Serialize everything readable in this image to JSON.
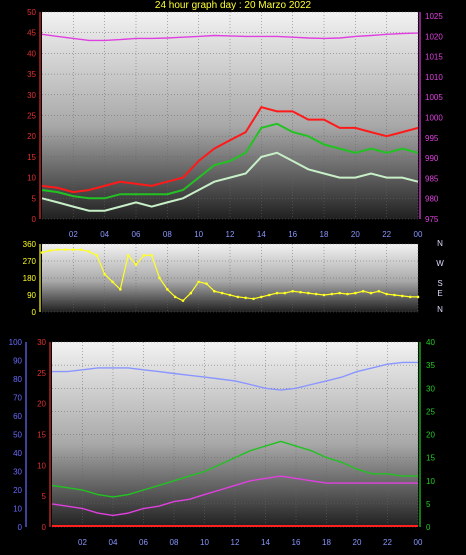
{
  "title": "24 hour graph day : 20 Marzo 2022",
  "colors": {
    "wind_gust": "#ff1a1a",
    "wind_avg": "#22c222",
    "wind_speed": "#c8f0c8",
    "pressure": "#e040e0",
    "direction": "#ffff22",
    "humidity": "#8a96ff",
    "temp_outdoor": "#22c222",
    "dewpoint": "#e040e0",
    "rain": "#ff2020",
    "axis_left": "#e03030",
    "axis_right_pressure": "#e040e0",
    "axis_humidity": "#6a6aff",
    "axis_right_temp": "#22cc22"
  },
  "x_tick_labels": [
    "02",
    "04",
    "06",
    "08",
    "10",
    "12",
    "14",
    "16",
    "18",
    "20",
    "22",
    "00"
  ],
  "compass_labels": [
    "N",
    "W",
    "S",
    "E",
    "N"
  ],
  "chart_data": [
    {
      "type": "line",
      "name_ref": "wind_pressure",
      "x_hours": [
        0,
        1,
        2,
        3,
        4,
        5,
        6,
        7,
        8,
        9,
        10,
        11,
        12,
        13,
        14,
        15,
        16,
        17,
        18,
        19,
        20,
        21,
        22,
        23,
        24
      ],
      "y_left_ticks": [
        0,
        5,
        10,
        15,
        20,
        25,
        30,
        35,
        40,
        45,
        50
      ],
      "y_right_ticks": [
        975,
        980,
        985,
        990,
        995,
        1000,
        1005,
        1010,
        1015,
        1020,
        1025
      ],
      "ylim_left": [
        0,
        50
      ],
      "ylim_right": [
        975,
        1026
      ],
      "series": [
        {
          "key": "wind_gust",
          "axis": "left",
          "values": [
            8,
            7.5,
            6.5,
            7,
            8,
            9,
            8.5,
            8,
            9,
            10,
            14,
            17,
            19,
            21,
            27,
            26,
            26,
            24,
            24,
            22,
            22,
            21,
            20,
            21,
            22
          ]
        },
        {
          "key": "wind_avg",
          "axis": "left",
          "values": [
            7,
            6.5,
            5.5,
            5,
            5,
            6,
            6,
            6,
            6,
            7,
            10,
            13,
            14,
            16,
            22,
            23,
            21,
            20,
            18,
            17,
            16,
            17,
            16,
            17,
            16
          ]
        },
        {
          "key": "wind_speed",
          "axis": "left",
          "values": [
            5,
            4,
            3,
            2,
            2,
            3,
            4,
            3,
            4,
            5,
            7,
            9,
            10,
            11,
            15,
            16,
            14,
            12,
            11,
            10,
            10,
            11,
            10,
            10,
            9
          ]
        },
        {
          "key": "pressure",
          "axis": "right",
          "values": [
            1020.5,
            1020.0,
            1019.5,
            1019.0,
            1019.0,
            1019.2,
            1019.5,
            1019.5,
            1019.6,
            1019.8,
            1020.0,
            1020.2,
            1020.1,
            1020.0,
            1020.0,
            1020.0,
            1019.8,
            1019.6,
            1019.5,
            1019.6,
            1020.0,
            1020.2,
            1020.5,
            1020.7,
            1020.8
          ]
        }
      ]
    },
    {
      "type": "scatter",
      "name_ref": "wind_direction",
      "x_hours": [
        0,
        0.5,
        1,
        1.5,
        2,
        2.5,
        3,
        3.5,
        4,
        4.5,
        5,
        5.5,
        6,
        6.5,
        7,
        7.5,
        8,
        8.5,
        9,
        9.5,
        10,
        10.5,
        11,
        11.5,
        12,
        12.5,
        13,
        13.5,
        14,
        14.5,
        15,
        15.5,
        16,
        16.5,
        17,
        17.5,
        18,
        18.5,
        19,
        19.5,
        20,
        20.5,
        21,
        21.5,
        22,
        22.5,
        23,
        23.5,
        24
      ],
      "y_ticks": [
        0,
        90,
        180,
        270,
        360
      ],
      "ylim": [
        0,
        360
      ],
      "series": [
        {
          "key": "direction",
          "values": [
            315,
            325,
            330,
            330,
            330,
            330,
            320,
            300,
            200,
            160,
            120,
            300,
            250,
            300,
            300,
            180,
            120,
            80,
            60,
            100,
            160,
            150,
            110,
            100,
            90,
            80,
            75,
            70,
            80,
            90,
            100,
            100,
            110,
            105,
            100,
            95,
            90,
            95,
            100,
            95,
            100,
            110,
            100,
            110,
            95,
            90,
            85,
            80,
            80
          ]
        }
      ]
    },
    {
      "type": "line",
      "name_ref": "temp_humidity",
      "x_hours": [
        0,
        1,
        2,
        3,
        4,
        5,
        6,
        7,
        8,
        9,
        10,
        11,
        12,
        13,
        14,
        15,
        16,
        17,
        18,
        19,
        20,
        21,
        22,
        23,
        24
      ],
      "y_humidity_ticks": [
        0,
        10,
        20,
        30,
        40,
        50,
        60,
        70,
        80,
        90,
        100
      ],
      "y_left_ticks": [
        0,
        5,
        10,
        15,
        20,
        25,
        30
      ],
      "y_right_ticks": [
        0,
        5,
        10,
        15,
        20,
        25,
        30,
        35,
        40
      ],
      "ylim_humidity": [
        0,
        100
      ],
      "ylim_left": [
        0,
        30
      ],
      "ylim_right": [
        0,
        40
      ],
      "series": [
        {
          "key": "humidity",
          "axis": "humidity",
          "values": [
            84,
            84,
            85,
            86,
            86,
            86,
            85,
            84,
            83,
            82,
            81,
            80,
            79,
            77,
            75,
            74,
            75,
            77,
            79,
            81,
            84,
            86,
            88,
            89,
            89
          ]
        },
        {
          "key": "temp_outdoor",
          "axis": "right",
          "values": [
            9.0,
            8.5,
            8.0,
            7.0,
            6.5,
            7.0,
            8.0,
            9.0,
            10.0,
            11.0,
            12.0,
            13.5,
            15.0,
            16.5,
            17.5,
            18.5,
            17.5,
            16.5,
            15.0,
            14.0,
            12.5,
            11.5,
            11.5,
            11.0,
            11.0
          ]
        },
        {
          "key": "dewpoint",
          "axis": "right",
          "values": [
            5.0,
            4.5,
            4.0,
            3.0,
            2.5,
            3.0,
            4.0,
            4.5,
            5.5,
            6.0,
            7.0,
            8.0,
            9.0,
            10.0,
            10.5,
            11.0,
            10.5,
            10.0,
            9.5,
            9.5,
            9.5,
            9.5,
            9.5,
            9.5,
            9.5
          ]
        },
        {
          "key": "rain",
          "axis": "left",
          "values": [
            0,
            0,
            0,
            0,
            0,
            0,
            0,
            0,
            0,
            0,
            0,
            0,
            0,
            0,
            0,
            0,
            0,
            0,
            0,
            0,
            0,
            0,
            0,
            0,
            0
          ]
        }
      ]
    }
  ]
}
